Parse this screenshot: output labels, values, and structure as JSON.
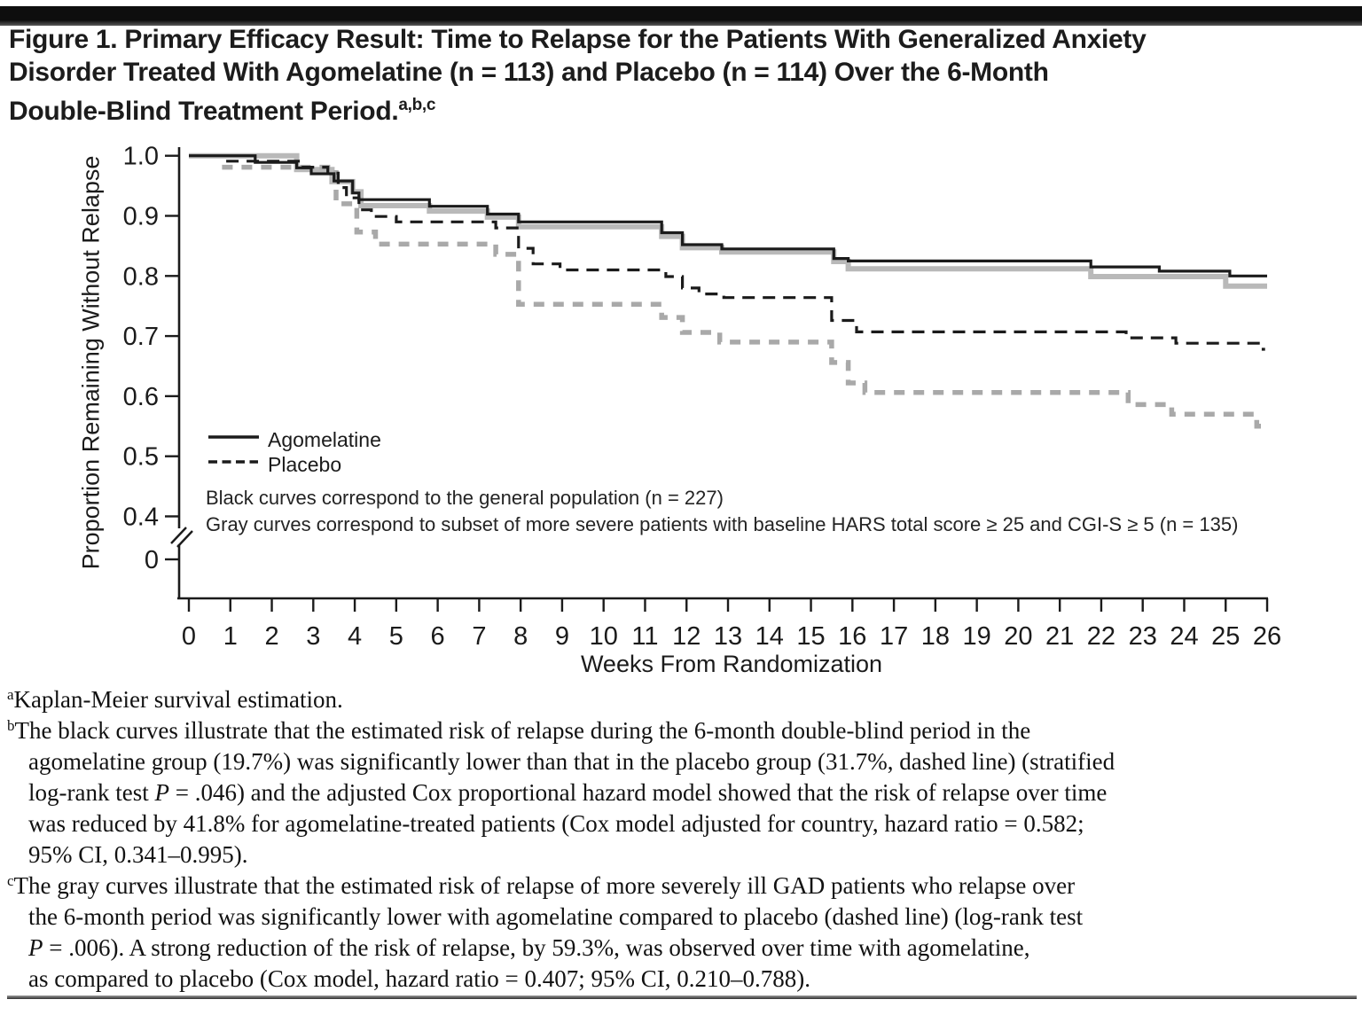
{
  "page": {
    "title": {
      "lines": [
        "Figure 1. Primary Efficacy Result: Time to Relapse for the Patients With Generalized Anxiety",
        "Disorder Treated With Agomelatine (n = 113) and Placebo (n = 114) Over the 6-Month",
        "Double-Blind Treatment Period."
      ],
      "superscript": "a,b,c"
    },
    "footnotes": [
      {
        "marker": "a",
        "lines": [
          "Kaplan-Meier survival estimation."
        ]
      },
      {
        "marker": "b",
        "lines": [
          "The black curves illustrate that the estimated risk of relapse during the 6-month double-blind period in the",
          "agomelatine group (19.7%) was significantly lower than that in the placebo group (31.7%, dashed line) (stratified",
          "log-rank test P = .046) and the adjusted Cox proportional hazard model showed that the risk of relapse over time",
          "was reduced by 41.8% for agomelatine-treated patients (Cox model adjusted for country, hazard ratio = 0.582;",
          "95% CI, 0.341–0.995)."
        ]
      },
      {
        "marker": "c",
        "lines": [
          "The gray curves illustrate that the estimated risk of relapse of more severely ill GAD patients who relapse over",
          "the 6-month period was significantly lower with agomelatine compared to placebo (dashed line) (log-rank test",
          "P = .006). A strong reduction of the risk of relapse, by 59.3%, was observed over time with agomelatine,",
          "as compared to placebo (Cox model, hazard ratio = 0.407; 95% CI, 0.210–0.788)."
        ]
      }
    ]
  },
  "chart_data": {
    "type": "line",
    "subtype": "kaplan-meier-step",
    "title": "",
    "xlabel": "Weeks From Randomization",
    "ylabel": "Proportion Remaining Without Relapse",
    "xlim": [
      0,
      26
    ],
    "ylim": [
      0.4,
      1.0
    ],
    "y_axis_break": true,
    "grid": false,
    "x_ticks": [
      0,
      1,
      2,
      3,
      4,
      5,
      6,
      7,
      8,
      9,
      10,
      11,
      12,
      13,
      14,
      15,
      16,
      17,
      18,
      19,
      20,
      21,
      22,
      23,
      24,
      25,
      26
    ],
    "y_ticks": [
      {
        "label": "1.0",
        "value": 1.0
      },
      {
        "label": "0.9",
        "value": 0.9
      },
      {
        "label": "0.8",
        "value": 0.8
      },
      {
        "label": "0.7",
        "value": 0.7
      },
      {
        "label": "0.6",
        "value": 0.6
      },
      {
        "label": "0.5",
        "value": 0.5
      },
      {
        "label": "0.4",
        "value": 0.4
      },
      {
        "label": "0",
        "value": 0
      }
    ],
    "legend": [
      {
        "label": "Agomelatine",
        "style": "solid",
        "color": "#1b1b1b"
      },
      {
        "label": "Placebo",
        "style": "dashed",
        "color": "#1b1b1b"
      }
    ],
    "notes": [
      "Black curves correspond to the general population (n = 227)",
      "Gray curves correspond to subset of more severe patients with baseline HARS total score ≥ 25 and CGI-S ≥ 5 (n = 135)"
    ],
    "series": [
      {
        "key": "agomelatine-severe",
        "name": "Agomelatine — severe subset (gray solid)",
        "color": "#b9b9b9",
        "width": 6,
        "dash": null,
        "end": 26,
        "steps": [
          [
            0,
            1.0
          ],
          [
            2.6,
            0.977
          ],
          [
            3.45,
            0.957
          ],
          [
            3.95,
            0.94
          ],
          [
            4.15,
            0.917
          ],
          [
            5.8,
            0.908
          ],
          [
            7.2,
            0.898
          ],
          [
            7.95,
            0.882
          ],
          [
            11.4,
            0.866
          ],
          [
            11.9,
            0.847
          ],
          [
            12.85,
            0.84
          ],
          [
            15.55,
            0.824
          ],
          [
            15.9,
            0.812
          ],
          [
            21.75,
            0.799
          ],
          [
            25.0,
            0.783
          ]
        ]
      },
      {
        "key": "placebo-severe",
        "name": "Placebo — severe subset (gray dashed)",
        "color": "#a9a9a9",
        "width": 5.5,
        "dash": [
          12,
          10
        ],
        "end": 25.85,
        "steps": [
          [
            0.8,
            0.981
          ],
          [
            3.55,
            0.92
          ],
          [
            4.05,
            0.873
          ],
          [
            4.5,
            0.853
          ],
          [
            7.4,
            0.836
          ],
          [
            7.95,
            0.753
          ],
          [
            11.4,
            0.731
          ],
          [
            11.9,
            0.706
          ],
          [
            12.8,
            0.69
          ],
          [
            15.5,
            0.656
          ],
          [
            15.9,
            0.622
          ],
          [
            16.3,
            0.606
          ],
          [
            22.65,
            0.586
          ],
          [
            23.7,
            0.57
          ],
          [
            25.75,
            0.55
          ]
        ]
      },
      {
        "key": "agomelatine-general",
        "name": "Agomelatine — general population (black solid)",
        "color": "#1b1b1b",
        "width": 3.2,
        "dash": null,
        "end": 26,
        "steps": [
          [
            0,
            1.0
          ],
          [
            1.6,
            0.989
          ],
          [
            2.6,
            0.98
          ],
          [
            2.95,
            0.97
          ],
          [
            3.5,
            0.958
          ],
          [
            3.95,
            0.938
          ],
          [
            4.1,
            0.927
          ],
          [
            5.8,
            0.916
          ],
          [
            7.2,
            0.903
          ],
          [
            7.95,
            0.89
          ],
          [
            11.4,
            0.872
          ],
          [
            11.9,
            0.852
          ],
          [
            12.85,
            0.845
          ],
          [
            15.55,
            0.829
          ],
          [
            15.9,
            0.825
          ],
          [
            21.75,
            0.815
          ],
          [
            23.4,
            0.808
          ],
          [
            25.1,
            0.8
          ]
        ]
      },
      {
        "key": "placebo-general",
        "name": "Placebo — general population (black dashed)",
        "color": "#1b1b1b",
        "width": 3.2,
        "dash": [
          14,
          9
        ],
        "end": 25.95,
        "steps": [
          [
            0.9,
            0.991
          ],
          [
            2.7,
            0.981
          ],
          [
            3.35,
            0.971
          ],
          [
            3.6,
            0.947
          ],
          [
            3.8,
            0.93
          ],
          [
            4.1,
            0.91
          ],
          [
            4.4,
            0.899
          ],
          [
            5.0,
            0.89
          ],
          [
            7.4,
            0.88
          ],
          [
            7.95,
            0.846
          ],
          [
            8.3,
            0.82
          ],
          [
            8.95,
            0.81
          ],
          [
            11.5,
            0.799
          ],
          [
            11.9,
            0.78
          ],
          [
            12.3,
            0.77
          ],
          [
            12.9,
            0.764
          ],
          [
            15.5,
            0.726
          ],
          [
            16.1,
            0.707
          ],
          [
            22.6,
            0.697
          ],
          [
            23.8,
            0.688
          ],
          [
            25.85,
            0.678
          ]
        ]
      }
    ]
  }
}
